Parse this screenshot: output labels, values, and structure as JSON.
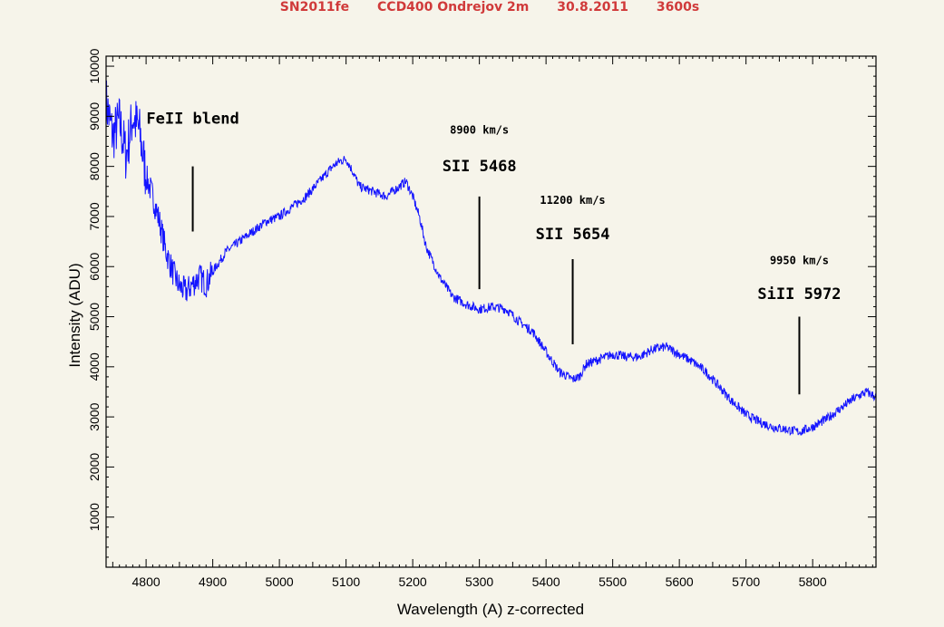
{
  "header": {
    "object": "SN2011fe",
    "instrument": "CCD400 Ondrejov 2m",
    "date": "30.8.2011",
    "exposure": "3600s",
    "color": "#d03a3a"
  },
  "chart_data": {
    "type": "line",
    "xlabel": "Wavelength (A)  z-corrected",
    "ylabel": "Intensity (ADU)",
    "xlim": [
      4740,
      5895
    ],
    "ylim": [
      0,
      10200
    ],
    "xticks": [
      4800,
      4900,
      5000,
      5100,
      5200,
      5300,
      5400,
      5500,
      5600,
      5700,
      5800
    ],
    "yticks": [
      1000,
      2000,
      3000,
      4000,
      5000,
      6000,
      7000,
      8000,
      9000,
      10000
    ],
    "grid": false,
    "line_color": "#1414ff",
    "series": [
      {
        "x": [
          4740,
          4750,
          4760,
          4770,
          4780,
          4790,
          4800,
          4810,
          4820,
          4830,
          4840,
          4850,
          4860,
          4870,
          4880,
          4890,
          4900,
          4920,
          4940,
          4960,
          4980,
          5000,
          5020,
          5040,
          5060,
          5080,
          5090,
          5100,
          5110,
          5120,
          5140,
          5160,
          5180,
          5190,
          5200,
          5210,
          5220,
          5240,
          5260,
          5280,
          5300,
          5320,
          5340,
          5360,
          5380,
          5400,
          5420,
          5440,
          5450,
          5460,
          5480,
          5500,
          5520,
          5540,
          5560,
          5580,
          5600,
          5620,
          5640,
          5660,
          5680,
          5700,
          5720,
          5740,
          5760,
          5780,
          5800,
          5820,
          5840,
          5860,
          5880,
          5895
        ],
        "y": [
          9300,
          8600,
          8900,
          8200,
          9000,
          8700,
          7800,
          7400,
          6900,
          6300,
          5900,
          5600,
          5500,
          5650,
          5800,
          5650,
          5900,
          6300,
          6500,
          6700,
          6900,
          7000,
          7200,
          7400,
          7700,
          8000,
          8100,
          8150,
          7900,
          7600,
          7500,
          7400,
          7600,
          7700,
          7400,
          7000,
          6400,
          5800,
          5400,
          5250,
          5150,
          5200,
          5150,
          4900,
          4700,
          4300,
          3900,
          3750,
          3800,
          4050,
          4150,
          4250,
          4200,
          4200,
          4350,
          4400,
          4250,
          4100,
          3900,
          3600,
          3300,
          3050,
          2900,
          2800,
          2750,
          2700,
          2800,
          2950,
          3150,
          3350,
          3500,
          3400
        ]
      }
    ],
    "annotations": [
      {
        "label": "FeII blend",
        "velocity": "",
        "x": 4870,
        "text_y": 8850,
        "vel_y": 0,
        "line_top": 8000,
        "line_bottom": 6700
      },
      {
        "label": "SII 5468",
        "velocity": "8900 km/s",
        "x": 5300,
        "text_y": 7900,
        "vel_y": 8650,
        "line_top": 7400,
        "line_bottom": 5550
      },
      {
        "label": "SII 5654",
        "velocity": "11200 km/s",
        "x": 5440,
        "text_y": 6550,
        "vel_y": 7250,
        "line_top": 6150,
        "line_bottom": 4450
      },
      {
        "label": "SiII 5972",
        "velocity": "9950 km/s",
        "x": 5780,
        "text_y": 5350,
        "vel_y": 6050,
        "line_top": 5000,
        "line_bottom": 3450
      }
    ]
  }
}
